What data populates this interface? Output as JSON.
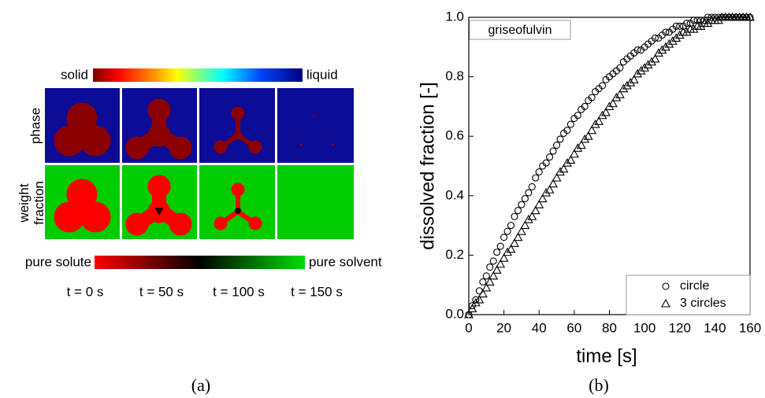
{
  "panel_a": {
    "label": "(a)",
    "phase_colorbar": {
      "left": "solid",
      "right": "liquid"
    },
    "weight_colorbar": {
      "left": "pure solute",
      "right": "pure solvent"
    },
    "row_labels": [
      "phase",
      "weight fraction"
    ],
    "times": [
      "t = 0 s",
      "t = 50 s",
      "t = 100 s",
      "t = 150 s"
    ]
  },
  "chart_data": {
    "type": "scatter",
    "panel_label": "(b)",
    "annotation": "griseofulvin",
    "x_label": "time [s]",
    "y_label": "dissolved fraction [-]",
    "x": [
      0,
      2,
      4,
      6,
      8,
      10,
      12,
      14,
      16,
      18,
      20,
      22,
      24,
      26,
      28,
      30,
      32,
      34,
      36,
      38,
      40,
      42,
      44,
      46,
      48,
      50,
      52,
      54,
      56,
      58,
      60,
      62,
      64,
      66,
      68,
      70,
      72,
      74,
      76,
      78,
      80,
      82,
      84,
      86,
      88,
      90,
      92,
      94,
      96,
      98,
      100,
      102,
      104,
      106,
      108,
      110,
      112,
      114,
      116,
      118,
      120,
      122,
      124,
      126,
      128,
      130,
      132,
      134,
      136,
      138,
      140,
      142,
      144,
      146,
      148,
      150,
      152,
      154,
      156,
      158,
      160
    ],
    "series": [
      {
        "name": "circle",
        "marker": "circle",
        "color": "#000000",
        "values": [
          0,
          0.03,
          0.05,
          0.08,
          0.11,
          0.13,
          0.16,
          0.18,
          0.21,
          0.23,
          0.26,
          0.28,
          0.3,
          0.33,
          0.35,
          0.37,
          0.39,
          0.41,
          0.43,
          0.46,
          0.48,
          0.5,
          0.51,
          0.53,
          0.55,
          0.57,
          0.59,
          0.61,
          0.62,
          0.64,
          0.66,
          0.67,
          0.69,
          0.7,
          0.72,
          0.73,
          0.75,
          0.76,
          0.77,
          0.79,
          0.8,
          0.81,
          0.82,
          0.83,
          0.85,
          0.86,
          0.87,
          0.88,
          0.89,
          0.89,
          0.9,
          0.91,
          0.92,
          0.93,
          0.93,
          0.94,
          0.95,
          0.95,
          0.96,
          0.97,
          0.97,
          0.97,
          0.98,
          0.98,
          0.99,
          0.99,
          0.99,
          0.99,
          1.0,
          1.0,
          1.0,
          1.0,
          1.0,
          1.0,
          1.0,
          1.0,
          1.0,
          1.0,
          1.0,
          1.0,
          1.0
        ]
      },
      {
        "name": "3 circles",
        "marker": "triangle",
        "color": "#000000",
        "values": [
          0,
          0.02,
          0.04,
          0.05,
          0.07,
          0.09,
          0.11,
          0.13,
          0.15,
          0.17,
          0.19,
          0.21,
          0.22,
          0.24,
          0.26,
          0.28,
          0.3,
          0.32,
          0.33,
          0.35,
          0.37,
          0.39,
          0.41,
          0.42,
          0.44,
          0.46,
          0.48,
          0.49,
          0.51,
          0.52,
          0.54,
          0.56,
          0.57,
          0.59,
          0.6,
          0.62,
          0.64,
          0.65,
          0.67,
          0.68,
          0.7,
          0.71,
          0.73,
          0.74,
          0.76,
          0.77,
          0.78,
          0.79,
          0.81,
          0.82,
          0.83,
          0.84,
          0.85,
          0.86,
          0.88,
          0.89,
          0.9,
          0.91,
          0.92,
          0.93,
          0.94,
          0.95,
          0.95,
          0.96,
          0.96,
          0.97,
          0.97,
          0.98,
          0.98,
          0.99,
          0.99,
          0.99,
          1.0,
          1.0,
          1.0,
          1.0,
          1.0,
          1.0,
          1.0,
          1.0,
          1.0
        ]
      }
    ],
    "xlim": [
      0,
      160
    ],
    "xticks": [
      0,
      20,
      40,
      60,
      80,
      100,
      120,
      140,
      160
    ],
    "ylim": [
      0,
      1
    ],
    "yticks": [
      {
        "value": 0,
        "label": "0.0"
      },
      0.2,
      0.4,
      0.6,
      0.8,
      {
        "value": 1,
        "label": "1.0"
      }
    ],
    "legend": "lower right",
    "grid": false
  }
}
